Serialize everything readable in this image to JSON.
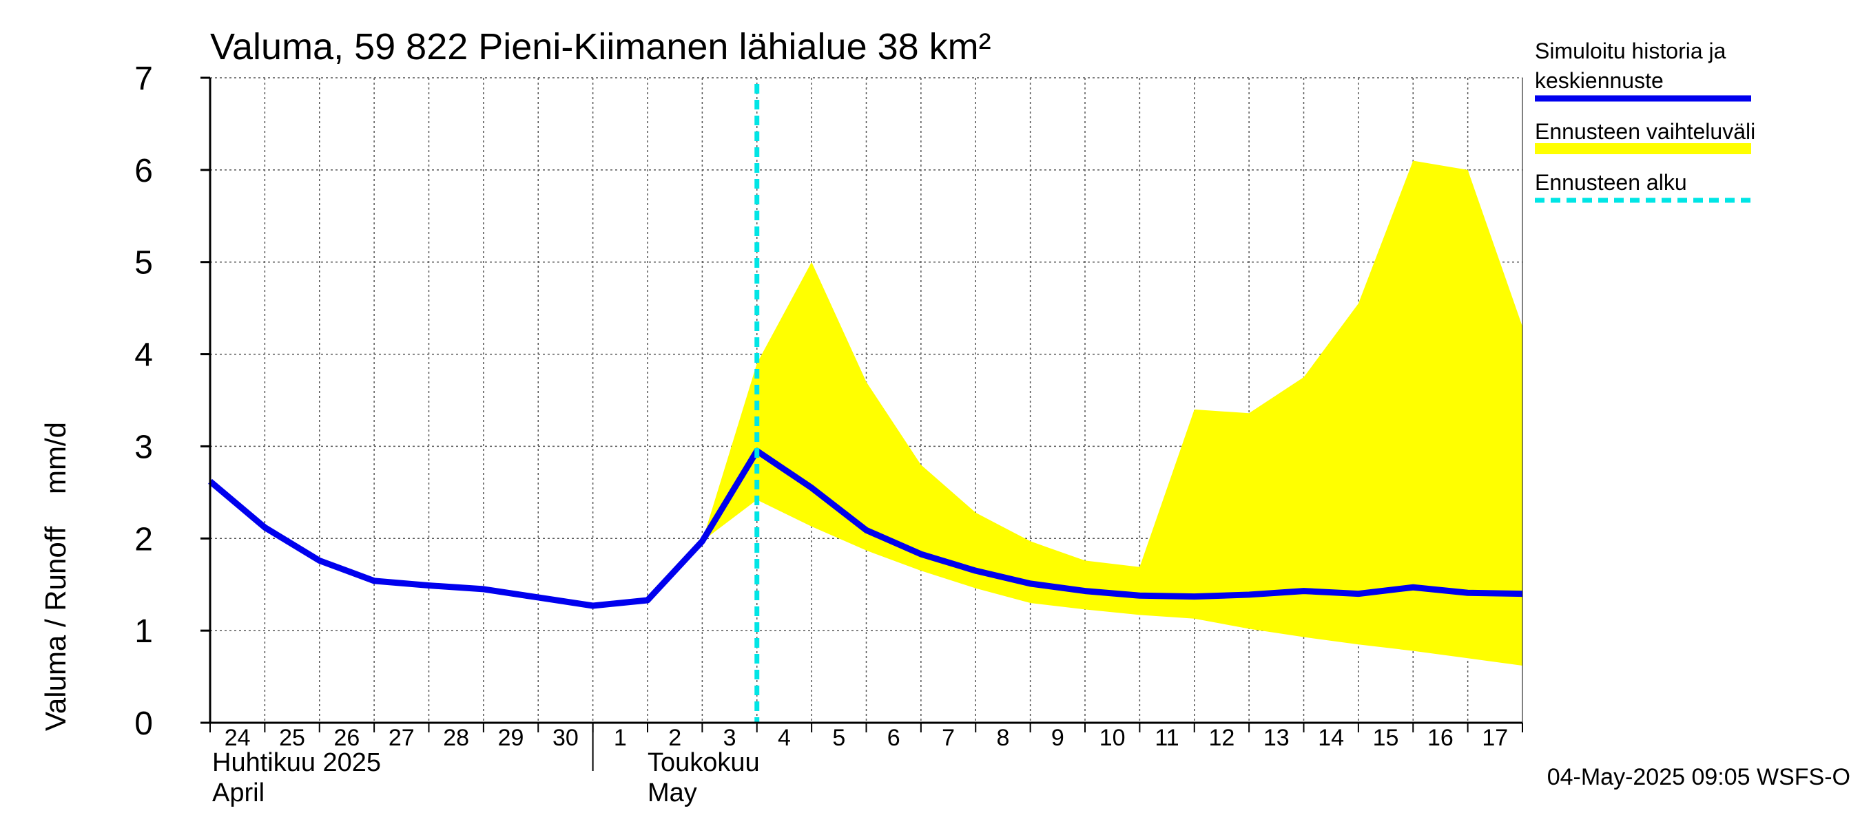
{
  "chart_data": {
    "type": "line",
    "title": "Valuma, 59 822 Pieni-Kiimanen lähialue 38 km²",
    "ylabel": "Valuma / Runoff    mm/d",
    "ylim": [
      0,
      7
    ],
    "yticks": [
      0,
      1,
      2,
      3,
      4,
      5,
      6,
      7
    ],
    "grid": true,
    "x_days": [
      "24",
      "25",
      "26",
      "27",
      "28",
      "29",
      "30",
      "1",
      "2",
      "3",
      "4",
      "5",
      "6",
      "7",
      "8",
      "9",
      "10",
      "11",
      "12",
      "13",
      "14",
      "15",
      "16",
      "17"
    ],
    "x_range": [
      "2025-04-24",
      "2025-05-18"
    ],
    "months": [
      {
        "name_fi": "Huhtikuu  2025",
        "name_en": "April"
      },
      {
        "name_fi": "Toukokuu",
        "name_en": "May"
      }
    ],
    "forecast_start": "2025-05-04",
    "series": [
      {
        "name": "Simuloitu historia ja keskiennuste",
        "color": "#0000ee",
        "points": [
          [
            "2025-04-24",
            2.62
          ],
          [
            "2025-04-25",
            2.12
          ],
          [
            "2025-04-26",
            1.76
          ],
          [
            "2025-04-27",
            1.54
          ],
          [
            "2025-04-28",
            1.49
          ],
          [
            "2025-04-29",
            1.45
          ],
          [
            "2025-04-30",
            1.36
          ],
          [
            "2025-05-01",
            1.27
          ],
          [
            "2025-05-02",
            1.33
          ],
          [
            "2025-05-03",
            1.97
          ],
          [
            "2025-05-04",
            2.95
          ],
          [
            "2025-05-05",
            2.55
          ],
          [
            "2025-05-06",
            2.09
          ],
          [
            "2025-05-07",
            1.83
          ],
          [
            "2025-05-08",
            1.65
          ],
          [
            "2025-05-09",
            1.51
          ],
          [
            "2025-05-10",
            1.43
          ],
          [
            "2025-05-11",
            1.38
          ],
          [
            "2025-05-12",
            1.37
          ],
          [
            "2025-05-13",
            1.39
          ],
          [
            "2025-05-14",
            1.43
          ],
          [
            "2025-05-15",
            1.4
          ],
          [
            "2025-05-16",
            1.47
          ],
          [
            "2025-05-17",
            1.41
          ],
          [
            "2025-05-18",
            1.4
          ]
        ]
      },
      {
        "name": "Ennusteen vaihteluväli",
        "color": "#ffff00",
        "upper": [
          [
            "2025-05-03",
            1.97
          ],
          [
            "2025-05-04",
            3.9
          ],
          [
            "2025-05-05",
            5.0
          ],
          [
            "2025-05-06",
            3.7
          ],
          [
            "2025-05-07",
            2.8
          ],
          [
            "2025-05-08",
            2.28
          ],
          [
            "2025-05-09",
            1.97
          ],
          [
            "2025-05-10",
            1.76
          ],
          [
            "2025-05-11",
            1.69
          ],
          [
            "2025-05-12",
            3.4
          ],
          [
            "2025-05-13",
            3.36
          ],
          [
            "2025-05-14",
            3.75
          ],
          [
            "2025-05-15",
            4.55
          ],
          [
            "2025-05-16",
            6.1
          ],
          [
            "2025-05-17",
            6.0
          ],
          [
            "2025-05-18",
            4.3
          ]
        ],
        "lower": [
          [
            "2025-05-03",
            1.97
          ],
          [
            "2025-05-04",
            2.42
          ],
          [
            "2025-05-05",
            2.13
          ],
          [
            "2025-05-06",
            1.87
          ],
          [
            "2025-05-07",
            1.65
          ],
          [
            "2025-05-08",
            1.46
          ],
          [
            "2025-05-09",
            1.3
          ],
          [
            "2025-05-10",
            1.23
          ],
          [
            "2025-05-11",
            1.17
          ],
          [
            "2025-05-12",
            1.13
          ],
          [
            "2025-05-13",
            1.02
          ],
          [
            "2025-05-14",
            0.93
          ],
          [
            "2025-05-15",
            0.85
          ],
          [
            "2025-05-16",
            0.78
          ],
          [
            "2025-05-17",
            0.7
          ],
          [
            "2025-05-18",
            0.62
          ]
        ]
      }
    ],
    "legend": [
      {
        "label": "Simuloitu historia ja keskiennuste",
        "style": "line",
        "color": "#0000ee"
      },
      {
        "label": "Ennusteen vaihteluväli",
        "style": "band",
        "color": "#ffff00"
      },
      {
        "label": "Ennusteen alku",
        "style": "dashed",
        "color": "#00e5e5"
      }
    ],
    "legend_position": "right"
  },
  "footer": "04-May-2025 09:05 WSFS-O"
}
